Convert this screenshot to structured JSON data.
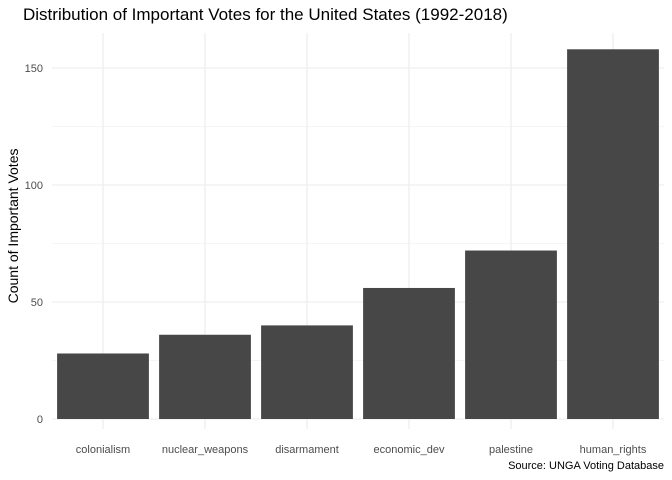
{
  "chart_data": {
    "type": "bar",
    "title": "Distribution of Important Votes for the United States (1992-2018)",
    "ylabel": "Count of Important Votes",
    "xlabel": "",
    "caption": "Source: UNGA Voting Database",
    "categories": [
      "colonialism",
      "nuclear_weapons",
      "disarmament",
      "economic_dev",
      "palestine",
      "human_rights"
    ],
    "values": [
      28,
      36,
      40,
      56,
      72,
      158
    ],
    "ylim": [
      0,
      165
    ],
    "yticks": [
      0,
      50,
      100,
      150
    ],
    "grid": true,
    "legend": "none",
    "bar_color": "#474747",
    "grid_color": "#ebebeb"
  }
}
